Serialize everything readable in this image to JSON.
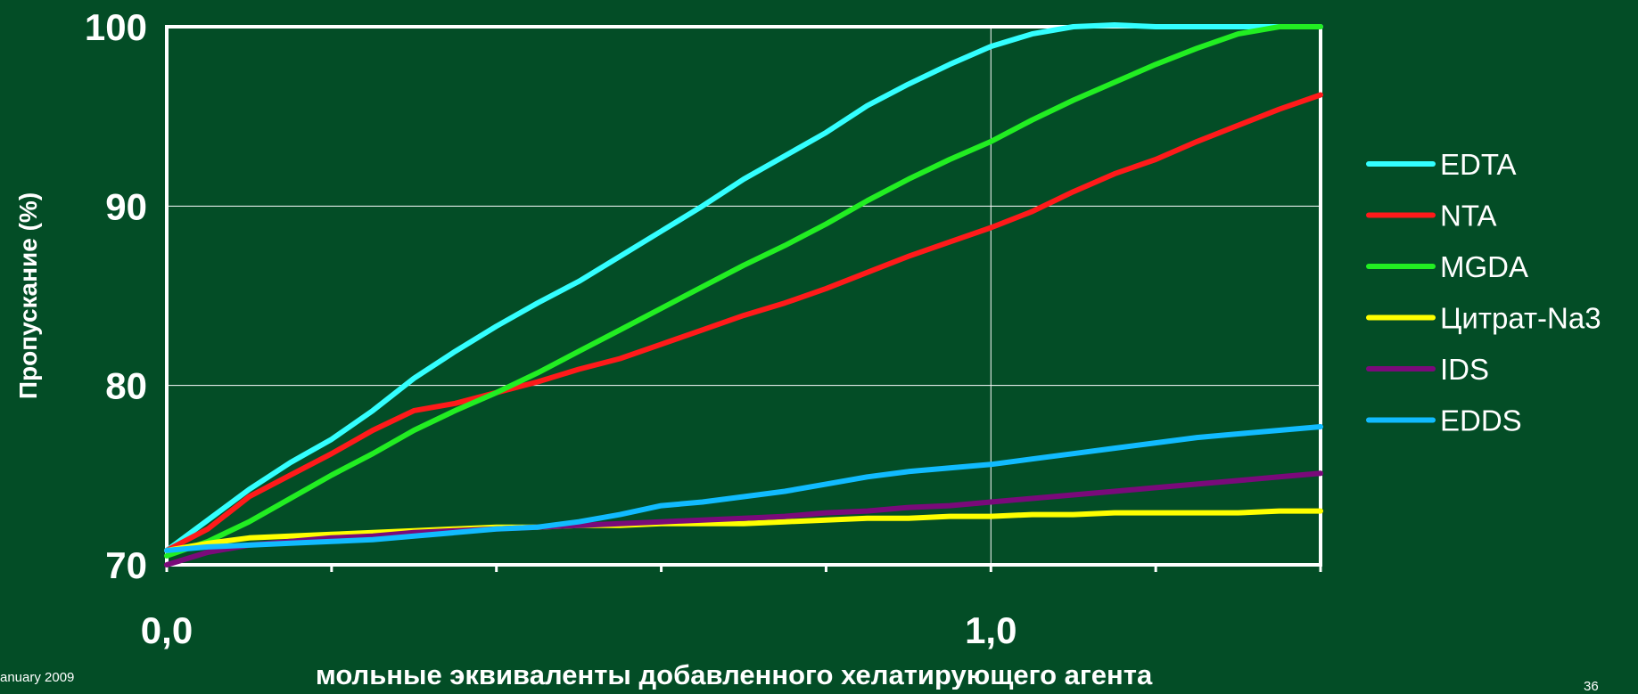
{
  "footer": {
    "date": "anuary 2009",
    "page": "36"
  },
  "colors": {
    "background": "#034d26",
    "axis": "#ffffff",
    "grid": "#ffffff"
  },
  "chart_data": {
    "type": "line",
    "title": "",
    "xlabel": "мольные эквиваленты добавленного хелатирующего агента",
    "ylabel": "Пропускание (%)",
    "xlim": [
      0,
      1.4
    ],
    "ylim": [
      70,
      100
    ],
    "x_tick_labels": [
      {
        "x": 0,
        "label": "0,0"
      },
      {
        "x": 1.0,
        "label": "1,0"
      }
    ],
    "y_tick_labels": [
      {
        "y": 70,
        "label": "70"
      },
      {
        "y": 80,
        "label": "80"
      },
      {
        "y": 90,
        "label": "90"
      },
      {
        "y": 100,
        "label": "100"
      }
    ],
    "grid": true,
    "legend": "right",
    "series": [
      {
        "name": "EDTA",
        "color": "#33ffff",
        "x": [
          0,
          0.05,
          0.1,
          0.15,
          0.2,
          0.25,
          0.3,
          0.35,
          0.4,
          0.45,
          0.5,
          0.55,
          0.6,
          0.65,
          0.7,
          0.75,
          0.8,
          0.85,
          0.9,
          0.95,
          1.0,
          1.05,
          1.1,
          1.15,
          1.2,
          1.25,
          1.3,
          1.35,
          1.4
        ],
        "y": [
          70.8,
          72.5,
          74.2,
          75.7,
          77.0,
          78.6,
          80.4,
          81.9,
          83.3,
          84.6,
          85.8,
          87.2,
          88.6,
          90.0,
          91.5,
          92.8,
          94.1,
          95.6,
          96.8,
          97.9,
          98.9,
          99.6,
          100.0,
          100.1,
          100.0,
          100.0,
          100.0,
          100.0,
          100.0
        ]
      },
      {
        "name": "NTA",
        "color": "#ff1a1a",
        "x": [
          0,
          0.05,
          0.1,
          0.15,
          0.2,
          0.25,
          0.3,
          0.35,
          0.4,
          0.45,
          0.5,
          0.55,
          0.6,
          0.65,
          0.7,
          0.75,
          0.8,
          0.85,
          0.9,
          0.95,
          1.0,
          1.05,
          1.1,
          1.15,
          1.2,
          1.25,
          1.3,
          1.35,
          1.4
        ],
        "y": [
          70.8,
          72.0,
          73.8,
          75.0,
          76.2,
          77.5,
          78.6,
          79.0,
          79.6,
          80.2,
          80.9,
          81.5,
          82.3,
          83.1,
          83.9,
          84.6,
          85.4,
          86.3,
          87.2,
          88.0,
          88.8,
          89.7,
          90.8,
          91.8,
          92.6,
          93.6,
          94.5,
          95.4,
          96.2
        ]
      },
      {
        "name": "MGDA",
        "color": "#22ee22",
        "x": [
          0,
          0.05,
          0.1,
          0.15,
          0.2,
          0.25,
          0.3,
          0.35,
          0.4,
          0.45,
          0.5,
          0.55,
          0.6,
          0.65,
          0.7,
          0.75,
          0.8,
          0.85,
          0.9,
          0.95,
          1.0,
          1.05,
          1.1,
          1.15,
          1.2,
          1.25,
          1.3,
          1.35,
          1.4
        ],
        "y": [
          70.5,
          71.3,
          72.4,
          73.7,
          75.0,
          76.2,
          77.5,
          78.6,
          79.6,
          80.7,
          81.9,
          83.1,
          84.3,
          85.5,
          86.7,
          87.8,
          89.0,
          90.3,
          91.5,
          92.6,
          93.6,
          94.8,
          95.9,
          96.9,
          97.9,
          98.8,
          99.6,
          100.0,
          100.0
        ]
      },
      {
        "name": "Цитрат-Na3",
        "color": "#ffff00",
        "x": [
          0,
          0.05,
          0.1,
          0.15,
          0.2,
          0.25,
          0.3,
          0.35,
          0.4,
          0.45,
          0.5,
          0.55,
          0.6,
          0.65,
          0.7,
          0.75,
          0.8,
          0.85,
          0.9,
          0.95,
          1.0,
          1.05,
          1.1,
          1.15,
          1.2,
          1.25,
          1.3,
          1.35,
          1.4
        ],
        "y": [
          70.8,
          71.2,
          71.5,
          71.6,
          71.7,
          71.8,
          71.9,
          72.0,
          72.1,
          72.1,
          72.2,
          72.2,
          72.3,
          72.3,
          72.3,
          72.4,
          72.5,
          72.6,
          72.6,
          72.7,
          72.7,
          72.8,
          72.8,
          72.9,
          72.9,
          72.9,
          72.9,
          73.0,
          73.0
        ]
      },
      {
        "name": "IDS",
        "color": "#7a0a7a",
        "x": [
          0,
          0.05,
          0.1,
          0.15,
          0.2,
          0.25,
          0.3,
          0.35,
          0.4,
          0.45,
          0.5,
          0.55,
          0.6,
          0.65,
          0.7,
          0.75,
          0.8,
          0.85,
          0.9,
          0.95,
          1.0,
          1.05,
          1.1,
          1.15,
          1.2,
          1.25,
          1.3,
          1.35,
          1.4
        ],
        "y": [
          70.0,
          70.7,
          71.1,
          71.3,
          71.5,
          71.6,
          71.8,
          71.9,
          72.0,
          72.1,
          72.2,
          72.3,
          72.4,
          72.5,
          72.6,
          72.7,
          72.9,
          73.0,
          73.2,
          73.3,
          73.5,
          73.7,
          73.9,
          74.1,
          74.3,
          74.5,
          74.7,
          74.9,
          75.1
        ]
      },
      {
        "name": "EDDS",
        "color": "#11bbff",
        "x": [
          0,
          0.05,
          0.1,
          0.15,
          0.2,
          0.25,
          0.3,
          0.35,
          0.4,
          0.45,
          0.5,
          0.55,
          0.6,
          0.65,
          0.7,
          0.75,
          0.8,
          0.85,
          0.9,
          0.95,
          1.0,
          1.05,
          1.1,
          1.15,
          1.2,
          1.25,
          1.3,
          1.35,
          1.4
        ],
        "y": [
          70.8,
          71.0,
          71.1,
          71.2,
          71.3,
          71.4,
          71.6,
          71.8,
          72.0,
          72.1,
          72.4,
          72.8,
          73.3,
          73.5,
          73.8,
          74.1,
          74.5,
          74.9,
          75.2,
          75.4,
          75.6,
          75.9,
          76.2,
          76.5,
          76.8,
          77.1,
          77.3,
          77.5,
          77.7
        ]
      }
    ]
  }
}
